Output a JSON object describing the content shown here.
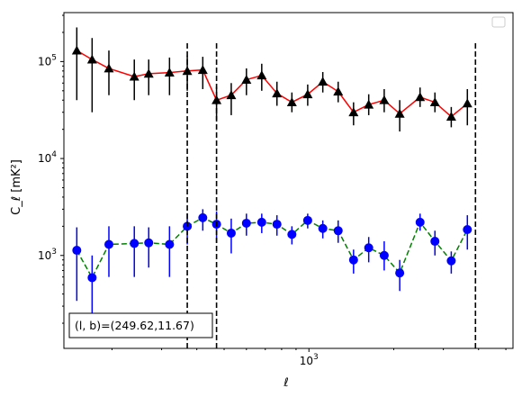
{
  "chart_data": {
    "type": "line",
    "xscale": "log",
    "yscale": "log",
    "xlim": [
      135,
      5300
    ],
    "ylim": [
      110,
      320000
    ],
    "xlabel": "ℓ",
    "ylabel": "C_ℓ  [mK²]",
    "xticks": [
      {
        "value": 1000,
        "base": "10",
        "exp": "3"
      }
    ],
    "yticks": [
      {
        "value": 1000,
        "base": "10",
        "exp": "3"
      },
      {
        "value": 10000,
        "base": "10",
        "exp": "4"
      },
      {
        "value": 100000,
        "base": "10",
        "exp": "5"
      }
    ],
    "legend": {
      "position": "top-right",
      "entries": []
    },
    "annotation": "(l, b)=(249.62,11.67)",
    "vlines": [
      370,
      470,
      3900
    ],
    "series": [
      {
        "color": "#ff0000",
        "marker": "triangle",
        "marker_color": "#000000",
        "linestyle": "solid",
        "errbar_color": "#000000",
        "points": [
          {
            "x": 150,
            "y": 130000,
            "lo": 40000,
            "hi": 225000
          },
          {
            "x": 170,
            "y": 105000,
            "lo": 30000,
            "hi": 175000
          },
          {
            "x": 195,
            "y": 85000,
            "lo": 45000,
            "hi": 130000
          },
          {
            "x": 240,
            "y": 70000,
            "lo": 40000,
            "hi": 105000
          },
          {
            "x": 270,
            "y": 75000,
            "lo": 45000,
            "hi": 105000
          },
          {
            "x": 320,
            "y": 77000,
            "lo": 45000,
            "hi": 110000
          },
          {
            "x": 370,
            "y": 80000,
            "lo": 50000,
            "hi": 115000
          },
          {
            "x": 420,
            "y": 82000,
            "lo": 52000,
            "hi": 112000
          },
          {
            "x": 470,
            "y": 40000,
            "lo": 25000,
            "hi": 55000
          },
          {
            "x": 530,
            "y": 45000,
            "lo": 28000,
            "hi": 60000
          },
          {
            "x": 600,
            "y": 65000,
            "lo": 45000,
            "hi": 85000
          },
          {
            "x": 680,
            "y": 72000,
            "lo": 50000,
            "hi": 95000
          },
          {
            "x": 770,
            "y": 47000,
            "lo": 35000,
            "hi": 62000
          },
          {
            "x": 870,
            "y": 38000,
            "lo": 30000,
            "hi": 48000
          },
          {
            "x": 990,
            "y": 46000,
            "lo": 35000,
            "hi": 58000
          },
          {
            "x": 1120,
            "y": 62000,
            "lo": 48000,
            "hi": 78000
          },
          {
            "x": 1270,
            "y": 49000,
            "lo": 38000,
            "hi": 62000
          },
          {
            "x": 1440,
            "y": 30000,
            "lo": 22000,
            "hi": 38000
          },
          {
            "x": 1630,
            "y": 36000,
            "lo": 28000,
            "hi": 46000
          },
          {
            "x": 1850,
            "y": 40000,
            "lo": 30000,
            "hi": 52000
          },
          {
            "x": 2100,
            "y": 29000,
            "lo": 19000,
            "hi": 40000
          },
          {
            "x": 2480,
            "y": 43000,
            "lo": 34000,
            "hi": 54000
          },
          {
            "x": 2800,
            "y": 38000,
            "lo": 30000,
            "hi": 48000
          },
          {
            "x": 3200,
            "y": 27000,
            "lo": 21000,
            "hi": 34000
          },
          {
            "x": 3650,
            "y": 37000,
            "lo": 22000,
            "hi": 52000
          }
        ]
      },
      {
        "color": "#008000",
        "marker": "circle",
        "marker_color": "#0000ff",
        "linestyle": "dashed",
        "errbar_color": "#0000ff",
        "points": [
          {
            "x": 150,
            "y": 1130,
            "lo": 340,
            "hi": 1950
          },
          {
            "x": 170,
            "y": 590,
            "lo": 200,
            "hi": 1000
          },
          {
            "x": 195,
            "y": 1300,
            "lo": 600,
            "hi": 2000
          },
          {
            "x": 240,
            "y": 1330,
            "lo": 600,
            "hi": 2000
          },
          {
            "x": 270,
            "y": 1350,
            "lo": 750,
            "hi": 1950
          },
          {
            "x": 320,
            "y": 1300,
            "lo": 600,
            "hi": 2000
          },
          {
            "x": 370,
            "y": 2000,
            "lo": 1300,
            "hi": 2700
          },
          {
            "x": 420,
            "y": 2450,
            "lo": 1800,
            "hi": 3000
          },
          {
            "x": 470,
            "y": 2100,
            "lo": 1350,
            "hi": 2850
          },
          {
            "x": 530,
            "y": 1700,
            "lo": 1050,
            "hi": 2400
          },
          {
            "x": 600,
            "y": 2150,
            "lo": 1600,
            "hi": 2700
          },
          {
            "x": 680,
            "y": 2200,
            "lo": 1700,
            "hi": 2700
          },
          {
            "x": 770,
            "y": 2100,
            "lo": 1600,
            "hi": 2600
          },
          {
            "x": 870,
            "y": 1650,
            "lo": 1300,
            "hi": 2000
          },
          {
            "x": 990,
            "y": 2300,
            "lo": 1900,
            "hi": 2700
          },
          {
            "x": 1120,
            "y": 1900,
            "lo": 1500,
            "hi": 2300
          },
          {
            "x": 1270,
            "y": 1800,
            "lo": 1350,
            "hi": 2300
          },
          {
            "x": 1440,
            "y": 900,
            "lo": 650,
            "hi": 1150
          },
          {
            "x": 1630,
            "y": 1200,
            "lo": 850,
            "hi": 1550
          },
          {
            "x": 1850,
            "y": 1000,
            "lo": 700,
            "hi": 1400
          },
          {
            "x": 2100,
            "y": 660,
            "lo": 430,
            "hi": 900
          },
          {
            "x": 2480,
            "y": 2200,
            "lo": 1800,
            "hi": 2700
          },
          {
            "x": 2800,
            "y": 1400,
            "lo": 1000,
            "hi": 1800
          },
          {
            "x": 3200,
            "y": 880,
            "lo": 650,
            "hi": 1100
          },
          {
            "x": 3650,
            "y": 1850,
            "lo": 1150,
            "hi": 2600
          }
        ]
      }
    ]
  }
}
